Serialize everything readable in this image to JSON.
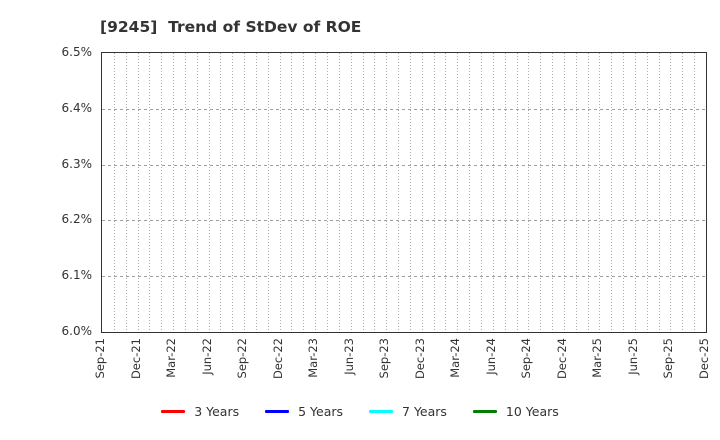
{
  "title": "[9245]  Trend of StDev of ROE",
  "chart_data": {
    "type": "line",
    "x_categories": [
      "Sep-21",
      "Dec-21",
      "Mar-22",
      "Jun-22",
      "Sep-22",
      "Dec-22",
      "Mar-23",
      "Jun-23",
      "Sep-23",
      "Dec-23",
      "Mar-24",
      "Jun-24",
      "Sep-24",
      "Dec-24",
      "Mar-25",
      "Jun-25",
      "Sep-25",
      "Dec-25"
    ],
    "months_per_tick": 3,
    "y_ticks": [
      "6.5%",
      "6.4%",
      "6.3%",
      "6.2%",
      "6.1%",
      "6.0%"
    ],
    "ylim": [
      6.0,
      6.5
    ],
    "ylabel": "",
    "xlabel": "",
    "grid": true,
    "legend_position": "bottom",
    "series": [
      {
        "name": "3 Years",
        "color": "#ff0000",
        "values": []
      },
      {
        "name": "5 Years",
        "color": "#0000ff",
        "values": []
      },
      {
        "name": "7 Years",
        "color": "#00ffff",
        "values": []
      },
      {
        "name": "10 Years",
        "color": "#008000",
        "values": []
      }
    ],
    "note": "no data points are visible inside the plotted y-range"
  },
  "colors": {
    "frame": "#333333",
    "grid_vertical": "#ababab",
    "grid_horizontal": "#9e9e9e",
    "text": "#333333",
    "background": "#ffffff"
  }
}
